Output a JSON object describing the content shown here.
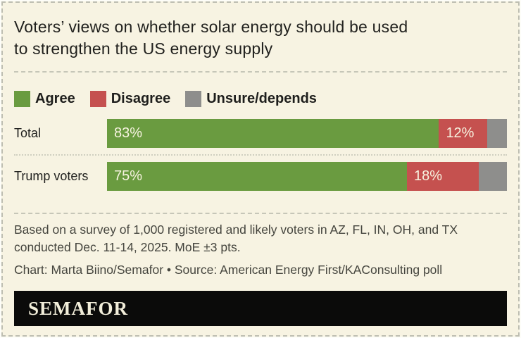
{
  "title_lines": [
    "Voters’ views on whether solar energy should be used",
    "to strengthen the US energy supply"
  ],
  "colors": {
    "background": "#f7f3e2",
    "agree": "#6a9b40",
    "disagree": "#c5514f",
    "unsure": "#8e8e8c",
    "logo_bar": "#0b0b0a",
    "logo_text": "#f2eeda"
  },
  "chart_data": {
    "type": "bar",
    "orientation": "horizontal",
    "stacked": true,
    "xlim": [
      0,
      100
    ],
    "value_suffix": "%",
    "categories": [
      "Total",
      "Trump voters"
    ],
    "series": [
      {
        "name": "Agree",
        "color": "#6a9b40",
        "values": [
          83,
          75
        ],
        "show_labels": true
      },
      {
        "name": "Disagree",
        "color": "#c5514f",
        "values": [
          12,
          18
        ],
        "show_labels": true
      },
      {
        "name": "Unsure/depends",
        "color": "#8e8e8c",
        "values": [
          5,
          7
        ],
        "show_labels": false
      }
    ],
    "legend_position": "top"
  },
  "footer": {
    "note_lines": [
      "Based on a survey of 1,000 registered and likely voters in AZ, FL, IN, OH, and TX",
      "conducted Dec. 11-14, 2025. MoE ±3 pts."
    ],
    "credit": "Chart: Marta Biino/Semafor • Source: American Energy First/KAConsulting poll"
  },
  "logo": {
    "text": "SEMAFOR"
  }
}
